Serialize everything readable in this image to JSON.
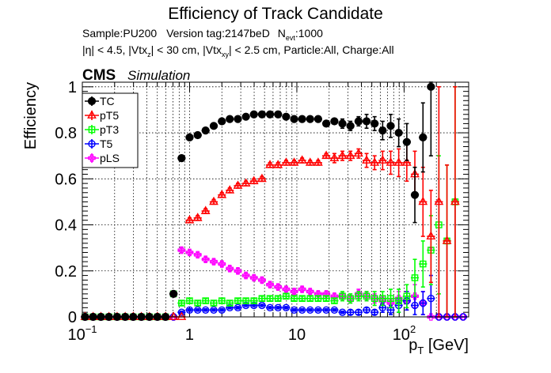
{
  "chart_data": {
    "type": "scatter",
    "title": "Efficiency of Track Candidate",
    "subtitle_line1": {
      "sample": "Sample:PU200",
      "version": "Version tag:2147beD",
      "nevt_prefix": "N",
      "nevt_sub": "evt",
      "nevt_value": ":1000"
    },
    "subtitle_line2": {
      "eta": "|η| < 4.5, |Vtx",
      "z_sub": "z",
      "mid": "| < 30 cm, |Vtx",
      "xy_sub": "xy",
      "rest": "| < 2.5 cm, Particle:All, Charge:All"
    },
    "cms_label": "CMS",
    "simulation_label": "Simulation",
    "ylabel": "Efficiency",
    "xlabel_main": "p",
    "xlabel_sub": "T",
    "xlabel_unit": " [GeV]",
    "x_scale": "log",
    "xlim": [
      0.1,
      400
    ],
    "ylim": [
      0,
      1.02
    ],
    "grid": true,
    "legend_placement": "top-left",
    "x_tick_labels": [
      {
        "value": 0.1,
        "base": "10",
        "exp": "−1"
      },
      {
        "value": 1,
        "base": "1",
        "exp": ""
      },
      {
        "value": 10,
        "base": "10",
        "exp": ""
      },
      {
        "value": 100,
        "base": "10",
        "exp": "2"
      }
    ],
    "y_tick_labels": [
      {
        "value": 0,
        "label": "0"
      },
      {
        "value": 0.2,
        "label": "0.2"
      },
      {
        "value": 0.4,
        "label": "0.4"
      },
      {
        "value": 0.6,
        "label": "0.6"
      },
      {
        "value": 0.8,
        "label": "0.8"
      },
      {
        "value": 1.0,
        "label": "1"
      }
    ],
    "x": [
      0.106,
      0.126,
      0.149,
      0.177,
      0.211,
      0.251,
      0.298,
      0.355,
      0.422,
      0.501,
      0.596,
      0.708,
      0.842,
      1.0,
      1.19,
      1.41,
      1.68,
      2.0,
      2.37,
      2.82,
      3.35,
      3.98,
      4.73,
      5.62,
      6.68,
      7.94,
      9.44,
      11.2,
      13.3,
      15.8,
      18.8,
      22.4,
      26.6,
      31.6,
      37.6,
      44.7,
      53.1,
      63.1,
      75.0,
      89.1,
      106,
      126,
      150,
      178,
      211,
      251,
      299,
      355
    ],
    "series": [
      {
        "name": "TC",
        "color": "#000000",
        "marker": "filled-circle",
        "values": [
          0,
          0,
          0,
          0,
          0,
          0,
          0,
          0,
          0,
          0,
          0,
          0.1,
          0.69,
          0.78,
          0.79,
          0.81,
          0.83,
          0.85,
          0.86,
          0.86,
          0.87,
          0.88,
          0.88,
          0.88,
          0.88,
          0.87,
          0.86,
          0.86,
          0.86,
          0.86,
          0.84,
          0.85,
          0.84,
          0.83,
          0.85,
          0.85,
          0.84,
          0.81,
          0.83,
          0.8,
          0.76,
          0.53,
          0.78,
          1.0,
          null,
          null,
          null,
          null
        ],
        "err": [
          0,
          0,
          0,
          0,
          0,
          0,
          0,
          0,
          0,
          0,
          0,
          0.01,
          0.01,
          0.01,
          0.01,
          0.01,
          0.01,
          0.01,
          0.01,
          0.01,
          0.01,
          0.01,
          0.01,
          0.01,
          0.01,
          0.01,
          0.01,
          0.01,
          0.01,
          0.01,
          0.01,
          0.01,
          0.02,
          0.02,
          0.02,
          0.03,
          0.03,
          0.04,
          0.05,
          0.06,
          0.08,
          0.12,
          0.15,
          0.3,
          0,
          0,
          0,
          0
        ]
      },
      {
        "name": "pT5",
        "color": "#ff0000",
        "marker": "open-triangle",
        "values": [
          0,
          0,
          0,
          0,
          0,
          0,
          0,
          0,
          0,
          0,
          0,
          0,
          0,
          0.42,
          0.43,
          0.46,
          0.5,
          0.53,
          0.55,
          0.57,
          0.58,
          0.59,
          0.6,
          0.66,
          0.66,
          0.67,
          0.67,
          0.68,
          0.67,
          0.67,
          0.7,
          0.69,
          0.7,
          0.7,
          0.71,
          0.68,
          0.67,
          0.68,
          0.67,
          0.67,
          0.67,
          0.62,
          0.5,
          0.35,
          0.5,
          0.33,
          0.5,
          null
        ],
        "err": [
          0,
          0,
          0,
          0,
          0,
          0,
          0,
          0,
          0,
          0,
          0,
          0,
          0,
          0.01,
          0.01,
          0.01,
          0.01,
          0.01,
          0.01,
          0.01,
          0.01,
          0.01,
          0.01,
          0.01,
          0.01,
          0.01,
          0.01,
          0.01,
          0.01,
          0.01,
          0.01,
          0.02,
          0.02,
          0.02,
          0.02,
          0.03,
          0.03,
          0.04,
          0.05,
          0.06,
          0.08,
          0.1,
          0.15,
          0.2,
          0.5,
          0.33,
          0.5,
          0
        ]
      },
      {
        "name": "pT3",
        "color": "#00ff00",
        "marker": "open-square",
        "values": [
          0,
          0,
          0,
          0,
          0,
          0,
          0,
          0,
          0,
          0,
          0,
          0.1,
          0.06,
          0.07,
          0.06,
          0.07,
          0.06,
          0.07,
          0.06,
          0.07,
          0.07,
          0.07,
          0.08,
          0.08,
          0.08,
          0.09,
          0.08,
          0.08,
          0.08,
          0.08,
          0.08,
          0.07,
          0.09,
          0.08,
          0.09,
          0.09,
          0.08,
          0.08,
          0.08,
          0.07,
          0.09,
          0.17,
          0.23,
          0.29,
          0.4,
          0.33,
          0.5,
          null
        ],
        "err": [
          0,
          0,
          0,
          0,
          0,
          0,
          0,
          0,
          0,
          0,
          0,
          0.01,
          0.01,
          0.01,
          0.01,
          0.01,
          0.01,
          0.01,
          0.01,
          0.01,
          0.01,
          0.01,
          0.01,
          0.01,
          0.01,
          0.01,
          0.01,
          0.01,
          0.01,
          0.01,
          0.01,
          0.01,
          0.02,
          0.02,
          0.02,
          0.02,
          0.03,
          0.03,
          0.04,
          0.05,
          0.05,
          0.08,
          0.1,
          0.15,
          0.3,
          0.33,
          0.5,
          0
        ]
      },
      {
        "name": "T5",
        "color": "#0000ff",
        "marker": "open-circle",
        "values": [
          0,
          0,
          0,
          0,
          0,
          0,
          0,
          0,
          0,
          0,
          0,
          0,
          0.02,
          0.03,
          0.03,
          0.03,
          0.03,
          0.03,
          0.04,
          0.04,
          0.05,
          0.05,
          0.05,
          0.04,
          0.04,
          0.04,
          0.03,
          0.03,
          0.03,
          0.03,
          0.03,
          0.03,
          0.02,
          0.02,
          0.02,
          0.03,
          0.02,
          0.04,
          0.03,
          0.05,
          0.07,
          0.05,
          0.06,
          0.08,
          0,
          0,
          0,
          0
        ],
        "err": [
          0,
          0,
          0,
          0,
          0,
          0,
          0,
          0,
          0,
          0,
          0,
          0,
          0.005,
          0.005,
          0.005,
          0.005,
          0.005,
          0.005,
          0.005,
          0.005,
          0.005,
          0.005,
          0.005,
          0.005,
          0.005,
          0.005,
          0.005,
          0.005,
          0.005,
          0.005,
          0.005,
          0.005,
          0.005,
          0.01,
          0.01,
          0.01,
          0.01,
          0.02,
          0.02,
          0.03,
          0.04,
          0.04,
          0.05,
          0.1,
          0,
          0,
          0,
          0
        ]
      },
      {
        "name": "pLS",
        "color": "#ff00ff",
        "marker": "open-cross",
        "values": [
          0,
          0,
          0,
          0,
          0,
          0,
          0,
          0,
          0,
          0,
          0,
          0,
          0.29,
          0.28,
          0.27,
          0.25,
          0.24,
          0.23,
          0.21,
          0.2,
          0.18,
          0.17,
          0.16,
          0.14,
          0.13,
          0.12,
          0.11,
          0.12,
          0.11,
          0.1,
          0.1,
          0.09,
          0.09,
          0.08,
          0.1,
          0.09,
          0.08,
          0.07,
          0.06,
          0.08,
          0.07,
          0.09,
          0.06,
          0,
          0,
          0,
          0,
          0
        ],
        "err": [
          0,
          0,
          0,
          0,
          0,
          0,
          0,
          0,
          0,
          0,
          0,
          0,
          0.01,
          0.01,
          0.01,
          0.01,
          0.01,
          0.01,
          0.01,
          0.01,
          0.01,
          0.01,
          0.01,
          0.01,
          0.01,
          0.01,
          0.01,
          0.01,
          0.01,
          0.01,
          0.01,
          0.01,
          0.01,
          0.01,
          0.02,
          0.02,
          0.02,
          0.02,
          0.02,
          0.03,
          0.04,
          0.05,
          0.05,
          0.3,
          0.5,
          0.33,
          0.5,
          0
        ]
      }
    ]
  }
}
